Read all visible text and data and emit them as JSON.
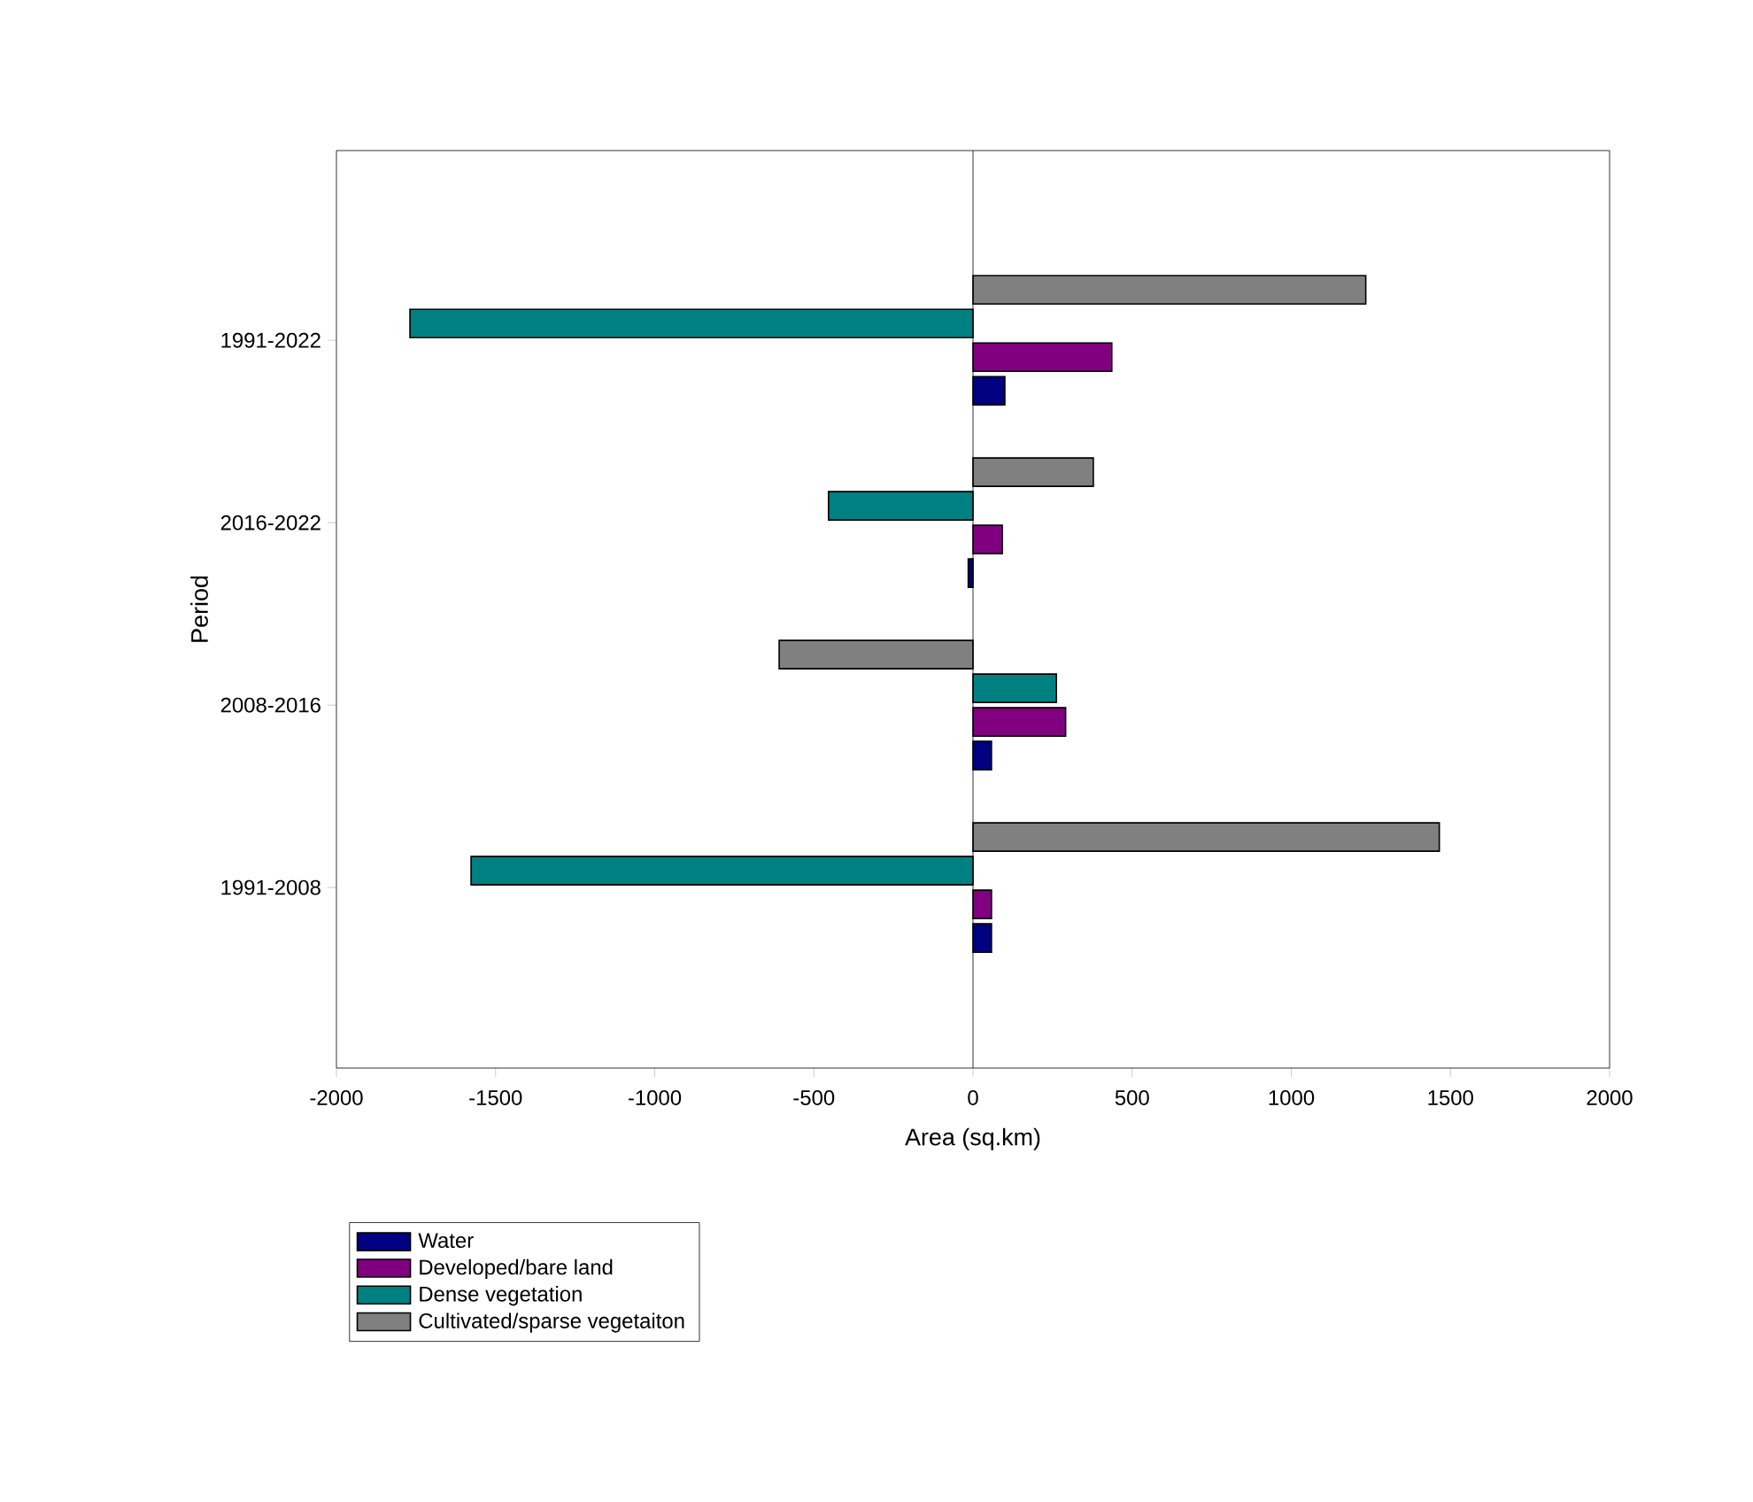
{
  "chart_data": {
    "type": "bar",
    "orientation": "horizontal",
    "xlabel": "Area (sq.km)",
    "ylabel": "Period",
    "categories": [
      "1991-2022",
      "2016-2022",
      "2008-2016",
      "1991-2008"
    ],
    "series": [
      {
        "name": "Water",
        "color": "#000080",
        "values": [
          100,
          -15,
          58,
          58
        ]
      },
      {
        "name": "Developed/bare land",
        "color": "#800080",
        "values": [
          436,
          92,
          291,
          58
        ]
      },
      {
        "name": "Dense vegetation",
        "color": "#008080",
        "values": [
          -1769,
          -454,
          262,
          -1577
        ]
      },
      {
        "name": "Cultivated/sparse vegetaiton",
        "color": "#808080",
        "values": [
          1234,
          378,
          -609,
          1465
        ]
      }
    ],
    "xlim": [
      -2000,
      2000
    ],
    "xticks": [
      -2000,
      -1500,
      -1000,
      -500,
      0,
      500,
      1000,
      1500,
      2000
    ],
    "ref_lines": [
      {
        "axis": "x",
        "value": 0,
        "color": "#000000"
      }
    ],
    "grid": false,
    "legend": "bottom"
  }
}
